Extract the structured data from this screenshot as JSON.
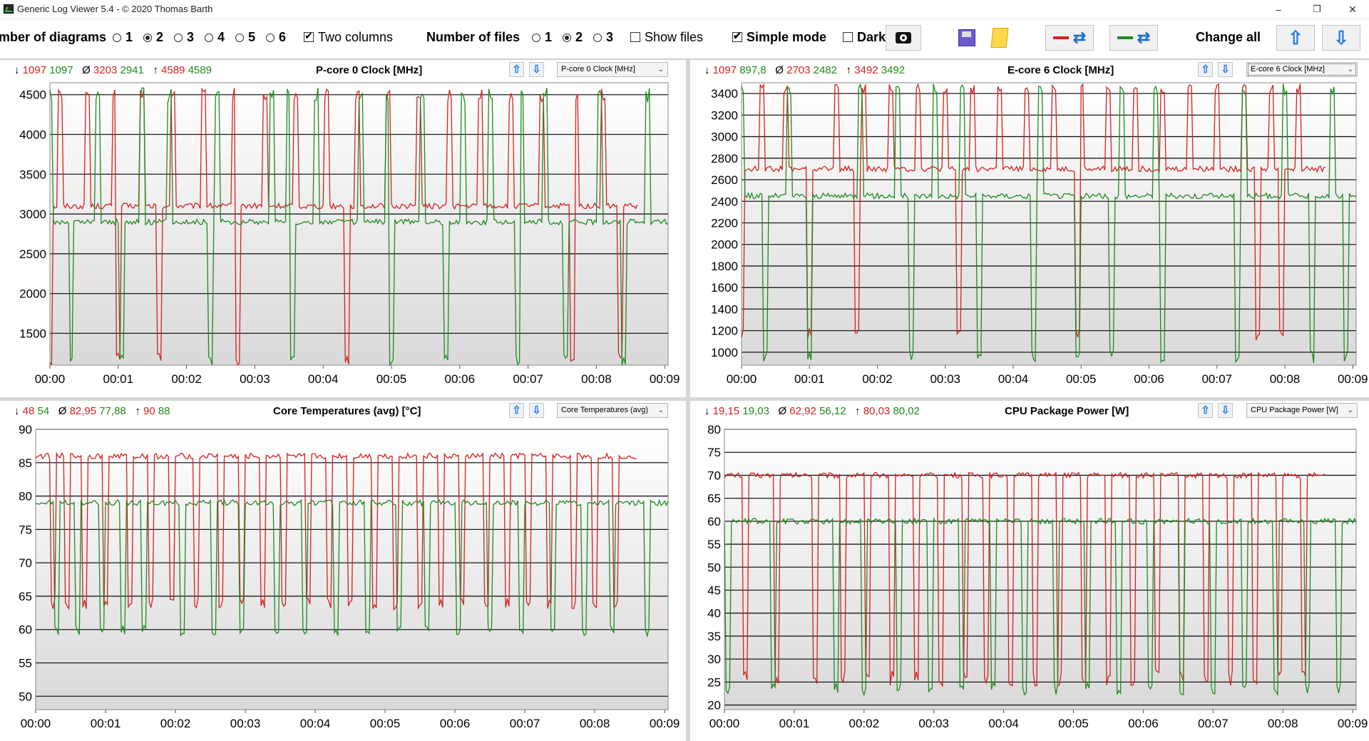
{
  "window": {
    "title": "Generic Log Viewer 5.4 - © 2020 Thomas Barth",
    "minimize": "–",
    "restore": "❐",
    "close": "✕"
  },
  "toolbar": {
    "diagrams_label": "mber of diagrams",
    "diagram_options": [
      "1",
      "2",
      "3",
      "4",
      "5",
      "6"
    ],
    "diagrams_selected": "2",
    "two_columns_label": "Two columns",
    "two_columns_checked": true,
    "files_label": "Number of files",
    "file_options": [
      "1",
      "2",
      "3"
    ],
    "files_selected": "2",
    "show_files_label": "Show files",
    "show_files_checked": false,
    "simple_mode_label": "Simple mode",
    "simple_mode_checked": true,
    "dark_label": "Dark",
    "dark_checked": false,
    "change_all_label": "Change all"
  },
  "panels": [
    {
      "title": "P-core 0 Clock [MHz]",
      "stats": {
        "min": [
          "1097",
          "1097"
        ],
        "avg": [
          "3203",
          "2941"
        ],
        "max": [
          "4589",
          "4589"
        ]
      },
      "dropdown": "P-core 0 Clock [MHz]",
      "chart_data": {
        "type": "line",
        "ylim": [
          1100,
          4650
        ],
        "yticks": [
          "1500",
          "2000",
          "2500",
          "3000",
          "3500",
          "4000",
          "4500"
        ],
        "xticks": [
          "00:00",
          "00:01",
          "00:02",
          "00:03",
          "00:04",
          "00:05",
          "00:06",
          "00:07",
          "00:08",
          "00:09"
        ],
        "xmax": 9.05,
        "series": [
          {
            "color": "#d42020",
            "end": 8.6,
            "base": 3100,
            "low": 1097,
            "high": 4589,
            "peaks": [
              0.15,
              0.55,
              0.95,
              1.35,
              1.8,
              2.25,
              2.7,
              3.15,
              3.6,
              4.05,
              4.5,
              4.95,
              5.4,
              5.85,
              6.3,
              6.75,
              7.2,
              7.7,
              8.1
            ],
            "dips": [
              0.02,
              1.0,
              1.6,
              2.75,
              4.35,
              7.65,
              8.35
            ]
          },
          {
            "color": "#1f8a1f",
            "end": 9.05,
            "base": 2900,
            "low": 1097,
            "high": 4589,
            "peaks": [
              0.0,
              0.7,
              1.35,
              1.75,
              2.45,
              3.25,
              3.5,
              3.9,
              4.55,
              4.95,
              5.45,
              6.05,
              6.45,
              6.9,
              7.25,
              8.05,
              8.75
            ],
            "dips": [
              0.32,
              1.05,
              2.35,
              3.55,
              5.0,
              5.8,
              6.85,
              7.55,
              8.4
            ]
          }
        ]
      }
    },
    {
      "title": "E-core 6 Clock [MHz]",
      "stats": {
        "min": [
          "1097",
          "897,8"
        ],
        "avg": [
          "2703",
          "2482"
        ],
        "max": [
          "3492",
          "3492"
        ]
      },
      "dropdown": "E-core 6 Clock [MHz]",
      "chart_data": {
        "type": "line",
        "ylim": [
          880,
          3500
        ],
        "yticks": [
          "1000",
          "1200",
          "1400",
          "1600",
          "1800",
          "2000",
          "2200",
          "2400",
          "2600",
          "2800",
          "3000",
          "3200",
          "3400"
        ],
        "xticks": [
          "00:00",
          "00:01",
          "00:02",
          "00:03",
          "00:04",
          "00:05",
          "00:06",
          "00:07",
          "00:08",
          "00:09"
        ],
        "xmax": 9.05,
        "series": [
          {
            "color": "#d42020",
            "end": 8.6,
            "base": 2700,
            "low": 1097,
            "high": 3492,
            "peaks": [
              0.3,
              0.65,
              1.0,
              1.4,
              1.8,
              2.2,
              2.6,
              3.0,
              3.4,
              3.8,
              4.2,
              4.6,
              5.0,
              5.4,
              5.8,
              6.2,
              6.6,
              7.0,
              7.4,
              7.8,
              8.2
            ],
            "dips": [
              0.0,
              1.0,
              1.7,
              3.2,
              4.95,
              7.6,
              7.95
            ]
          },
          {
            "color": "#1f8a1f",
            "end": 9.05,
            "base": 2450,
            "low": 897.8,
            "high": 3492,
            "peaks": [
              0.02,
              0.7,
              1.75,
              2.3,
              2.85,
              3.25,
              4.4,
              5.6,
              6.1,
              7.4,
              8.0,
              8.7
            ],
            "dips": [
              0.35,
              1.0,
              2.5,
              3.5,
              4.3,
              4.95,
              5.45,
              6.2,
              7.3,
              8.4,
              8.9
            ]
          }
        ]
      }
    },
    {
      "title": "Core Temperatures (avg) [°C]",
      "stats": {
        "min": [
          "48",
          "54"
        ],
        "avg": [
          "82,95",
          "77,88"
        ],
        "max": [
          "90",
          "88"
        ]
      },
      "dropdown": "Core Temperatures (avg)",
      "chart_data": {
        "type": "line",
        "ylim": [
          48,
          90
        ],
        "yticks": [
          "50",
          "55",
          "60",
          "65",
          "70",
          "75",
          "80",
          "85",
          "90"
        ],
        "xticks": [
          "00:00",
          "00:01",
          "00:02",
          "00:03",
          "00:04",
          "00:05",
          "00:06",
          "00:07",
          "00:08",
          "00:09"
        ],
        "xmax": 9.05,
        "series": [
          {
            "color": "#d42020",
            "end": 8.6,
            "base": 86,
            "low": 48,
            "high": 90,
            "peaks": [],
            "dips": [
              0.25,
              0.45,
              0.7,
              1.0,
              1.35,
              1.65,
              1.95,
              2.3,
              2.65,
              2.95,
              3.25,
              3.55,
              3.9,
              4.2,
              4.5,
              4.85,
              5.15,
              5.5,
              5.8,
              6.1,
              6.45,
              6.75,
              7.05,
              7.35,
              7.7,
              8.0,
              8.3
            ],
            "dipdepth": 63
          },
          {
            "color": "#1f8a1f",
            "end": 9.05,
            "base": 79,
            "low": 54,
            "high": 88,
            "peaks": [],
            "dips": [
              0.3,
              0.6,
              0.95,
              1.25,
              1.55,
              2.1,
              2.55,
              2.95,
              3.45,
              3.85,
              4.3,
              4.75,
              5.2,
              5.6,
              6.05,
              6.5,
              6.95,
              7.4,
              7.85,
              8.25,
              8.75
            ],
            "dipdepth": 59
          }
        ]
      }
    },
    {
      "title": "CPU Package Power [W]",
      "stats": {
        "min": [
          "19,15",
          "19,03"
        ],
        "avg": [
          "62,92",
          "56,12"
        ],
        "max": [
          "80,03",
          "80,02"
        ]
      },
      "dropdown": "CPU Package Power [W]",
      "chart_data": {
        "type": "line",
        "ylim": [
          19,
          80
        ],
        "yticks": [
          "20",
          "25",
          "30",
          "35",
          "40",
          "45",
          "50",
          "55",
          "60",
          "65",
          "70",
          "75",
          "80"
        ],
        "xticks": [
          "00:00",
          "00:01",
          "00:02",
          "00:03",
          "00:04",
          "00:05",
          "00:06",
          "00:07",
          "00:08",
          "00:09"
        ],
        "xmax": 9.05,
        "series": [
          {
            "color": "#d42020",
            "end": 8.6,
            "base": 70,
            "low": 19.15,
            "high": 80.03,
            "peaks": [],
            "dips": [
              0.3,
              0.75,
              1.3,
              1.7,
              2.05,
              2.4,
              2.75,
              3.1,
              3.45,
              3.75,
              4.1,
              4.45,
              4.8,
              5.15,
              5.5,
              5.85,
              6.2,
              6.55,
              6.9,
              7.25,
              7.6,
              7.95,
              8.3
            ],
            "dipdepth": 24
          },
          {
            "color": "#1f8a1f",
            "end": 9.05,
            "base": 60,
            "low": 19.03,
            "high": 80.02,
            "peaks": [],
            "dips": [
              0.05,
              0.7,
              1.6,
              2.0,
              2.5,
              2.95,
              3.4,
              3.85,
              4.3,
              4.75,
              5.2,
              5.65,
              6.1,
              6.55,
              7.0,
              7.45,
              7.9,
              8.35,
              8.8
            ],
            "dipdepth": 22
          }
        ]
      }
    }
  ]
}
